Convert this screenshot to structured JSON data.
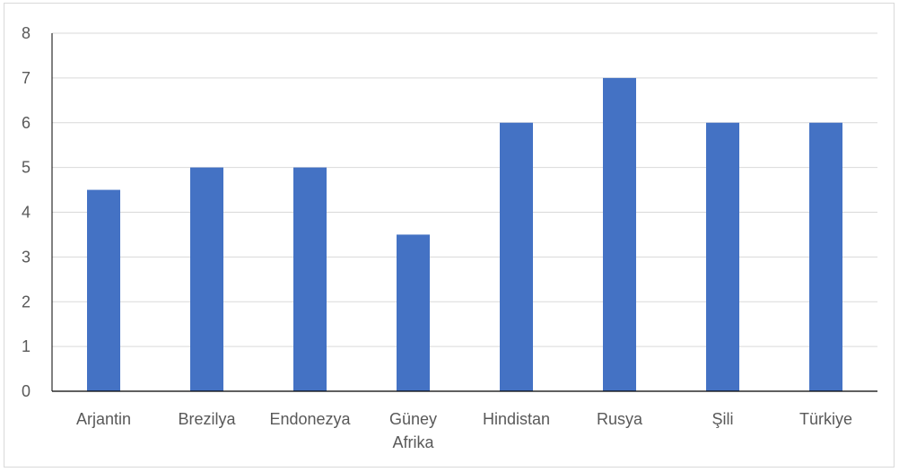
{
  "chart_data": {
    "type": "bar",
    "title": "",
    "xlabel": "",
    "ylabel": "",
    "categories": [
      [
        "Arjantin"
      ],
      [
        "Brezilya"
      ],
      [
        "Endonezya"
      ],
      [
        "Güney",
        "Afrika"
      ],
      [
        "Hindistan"
      ],
      [
        "Rusya"
      ],
      [
        "Şili"
      ],
      [
        "Türkiye"
      ]
    ],
    "values": [
      4.5,
      5,
      5,
      3.5,
      6,
      7,
      6,
      6
    ],
    "ylim": [
      0,
      8
    ],
    "yticks": [
      0,
      1,
      2,
      3,
      4,
      5,
      6,
      7,
      8
    ],
    "grid": true,
    "legend": "none",
    "colors": {
      "bar": "#4472c4",
      "grid": "#d9d9d9",
      "axis": "#000000",
      "text": "#595959"
    }
  }
}
